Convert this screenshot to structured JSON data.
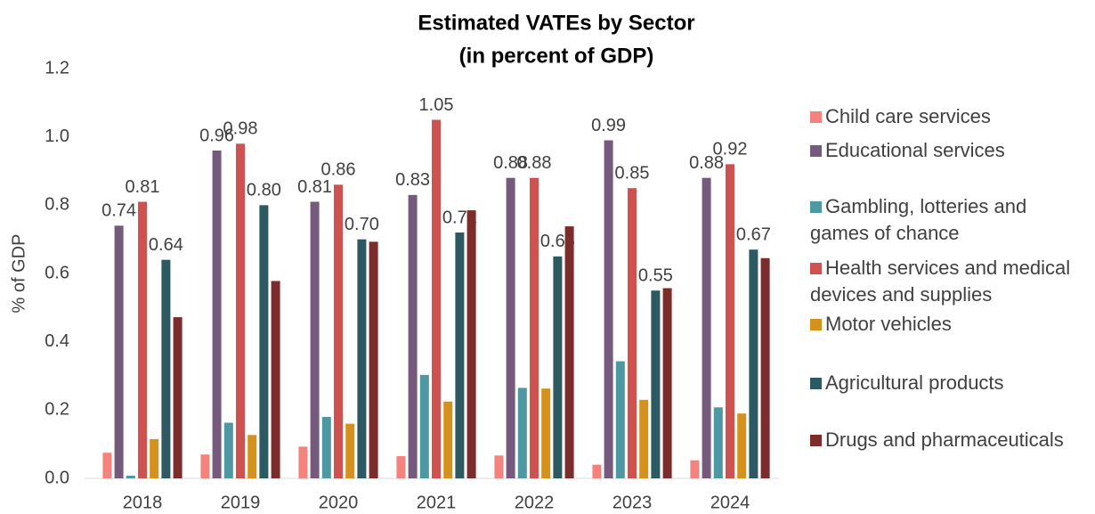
{
  "chart_data": {
    "type": "bar",
    "title": "Estimated VATEs by Sector",
    "subtitle": "(in percent of GDP)",
    "y_label": "% of GDP",
    "categories": [
      "2018",
      "2019",
      "2020",
      "2021",
      "2022",
      "2023",
      "2024"
    ],
    "series": [
      {
        "name": "Child care services",
        "color": "#f4837d",
        "values": [
          0.075,
          0.07,
          0.093,
          0.065,
          0.067,
          0.04,
          0.053
        ]
      },
      {
        "name": "Educational services",
        "color": "#765a7e",
        "values": [
          0.74,
          0.96,
          0.81,
          0.83,
          0.88,
          0.99,
          0.88
        ],
        "value_labels": [
          "0.74",
          "0.96",
          "0.81",
          "0.83",
          "0.88",
          "0.99",
          "0.88"
        ]
      },
      {
        "name": "Gambling, lotteries and games of chance",
        "color": "#4e98a4",
        "values": [
          0.008,
          0.163,
          0.18,
          0.303,
          0.265,
          0.343,
          0.208
        ]
      },
      {
        "name": "Health services and medical devices and supplies",
        "color": "#cd5250",
        "values": [
          0.81,
          0.98,
          0.86,
          1.05,
          0.88,
          0.85,
          0.92
        ],
        "value_labels": [
          "0.81",
          "0.98",
          "0.86",
          "1.05",
          "0.88",
          "0.85",
          "0.92"
        ]
      },
      {
        "name": "Motor vehicles",
        "color": "#d4911c",
        "values": [
          0.115,
          0.127,
          0.16,
          0.225,
          0.263,
          0.23,
          0.19
        ]
      },
      {
        "name": "Agricultural products",
        "color": "#2d5a62",
        "values": [
          0.64,
          0.8,
          0.7,
          0.72,
          0.65,
          0.55,
          0.67
        ],
        "value_labels": [
          "0.64",
          "0.80",
          "0.70",
          "0.72",
          "0.65",
          "0.55",
          "0.67"
        ]
      },
      {
        "name": "Drugs and pharmaceuticals",
        "color": "#7b2c2b",
        "values": [
          0.472,
          0.578,
          0.693,
          0.785,
          0.738,
          0.557,
          0.645
        ]
      }
    ],
    "ylim": [
      0,
      1.2
    ],
    "yticks": [
      {
        "value": 0,
        "label": "0.0"
      },
      0.2,
      0.4,
      0.6,
      0.8,
      {
        "value": 1,
        "label": "1.0"
      },
      1.2
    ],
    "grid": false,
    "legend": "right"
  }
}
